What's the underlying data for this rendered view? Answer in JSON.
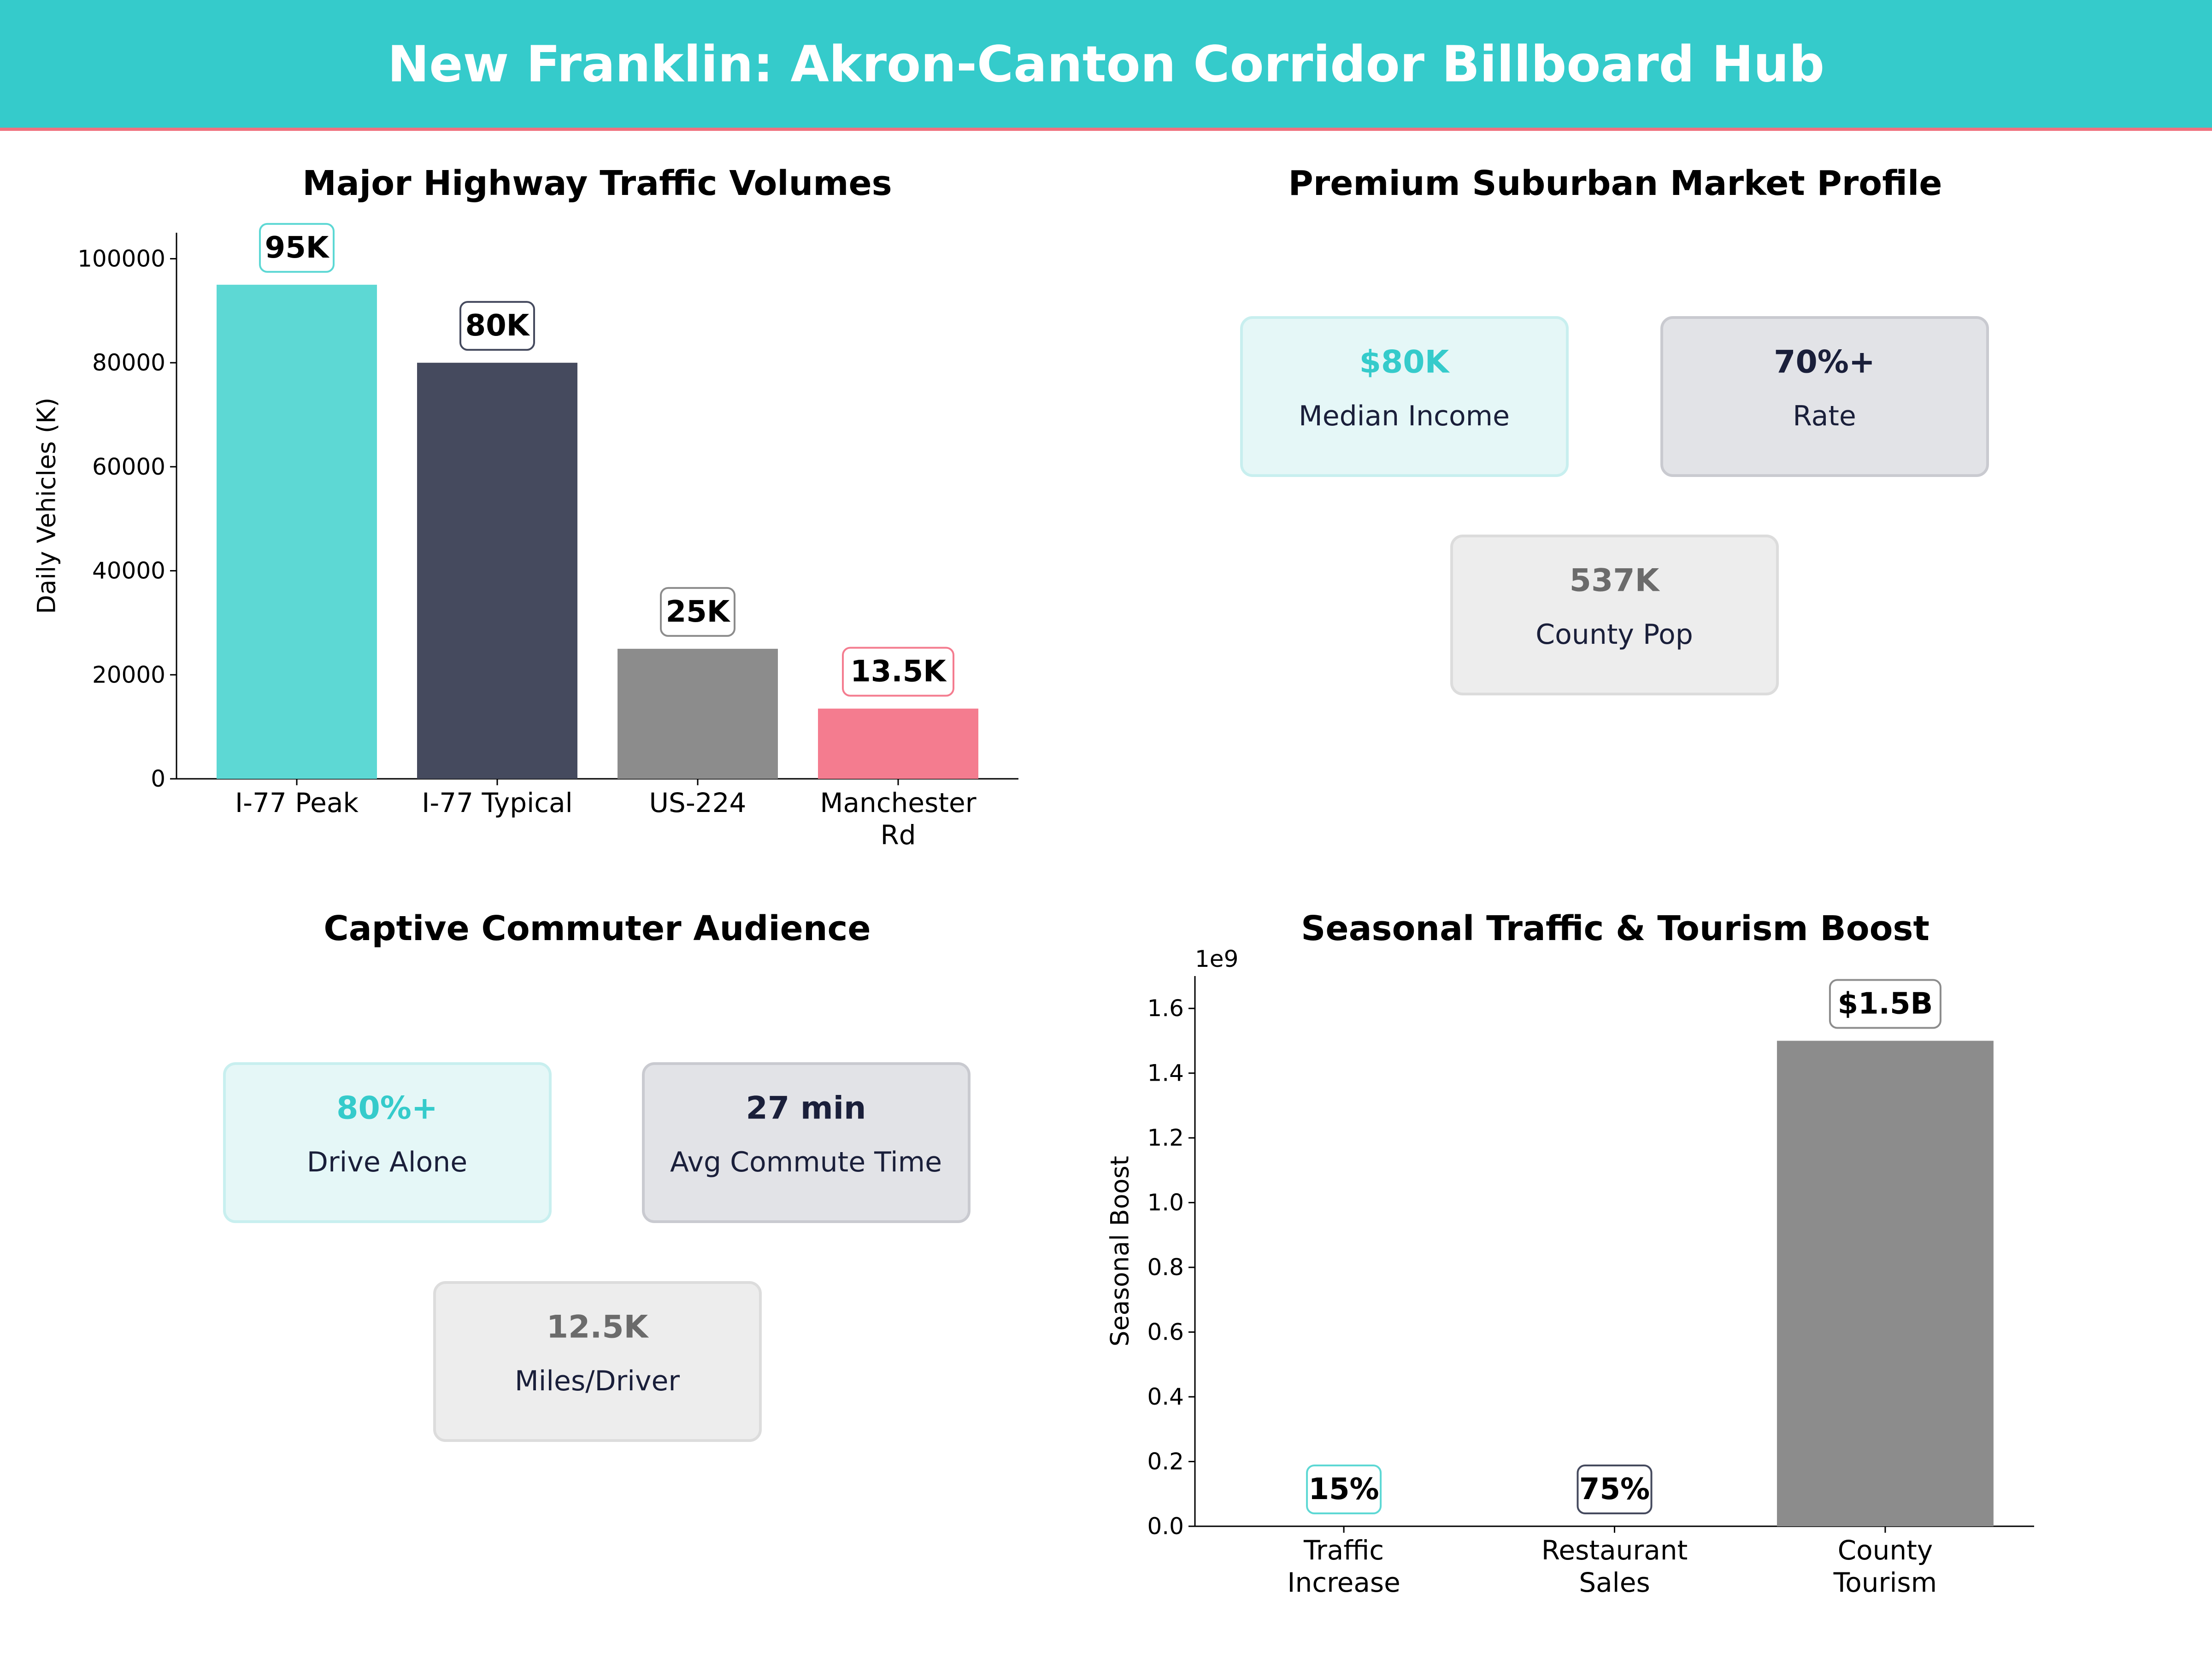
{
  "header": {
    "title": "New Franklin: Akron-Canton Corridor Billboard Hub",
    "bg": "#35CBCB",
    "accent_line": "#F0727F"
  },
  "colors": {
    "teal": "#5DD8D4",
    "navy": "#454A5E",
    "gray": "#8C8C8C",
    "pink": "#F47C8F"
  },
  "chart_data": [
    {
      "type": "bar",
      "title": "Major Highway Traffic Volumes",
      "ylabel": "Daily Vehicles (K)",
      "xlabel": "",
      "categories": [
        "I-77 Peak",
        "I-77 Typical",
        "US-224",
        "Manchester\nRd"
      ],
      "values": [
        95000,
        80000,
        25000,
        13500
      ],
      "data_labels": [
        "95K",
        "80K",
        "25K",
        "13.5K"
      ],
      "bar_colors": [
        "#5DD8D4",
        "#454A5E",
        "#8C8C8C",
        "#F47C8F"
      ],
      "ylim": [
        0,
        105000
      ],
      "yticks": [
        0,
        20000,
        40000,
        60000,
        80000,
        100000
      ],
      "grid": false
    },
    {
      "type": "bar",
      "title": "Seasonal Traffic & Tourism Boost",
      "ylabel": "Seasonal Boost",
      "xlabel": "",
      "offset_label": "1e9",
      "categories": [
        "Traffic\nIncrease",
        "Restaurant\nSales",
        "County\nTourism"
      ],
      "values": [
        15,
        75,
        1500000000
      ],
      "data_labels": [
        "15%",
        "75%",
        "$1.5B"
      ],
      "bar_colors": [
        "#5DD8D4",
        "#454A5E",
        "#8C8C8C"
      ],
      "ylim": [
        0,
        1700000000
      ],
      "yticks": [
        0,
        0.2,
        0.4,
        0.6,
        0.8,
        1.0,
        1.2,
        1.4,
        1.6
      ],
      "ytick_labels": [
        "0.0",
        "0.2",
        "0.4",
        "0.6",
        "0.8",
        "1.0",
        "1.2",
        "1.4",
        "1.6"
      ],
      "grid": false
    }
  ],
  "market_profile": {
    "title": "Premium Suburban Market Profile",
    "cards": [
      {
        "value": "$80K",
        "label": "Median Income",
        "style": "teal"
      },
      {
        "value": "70%+",
        "label": "Rate",
        "style": "navy"
      },
      {
        "value": "537K",
        "label": "County Pop",
        "style": "gray"
      }
    ]
  },
  "commuter": {
    "title": "Captive Commuter Audience",
    "cards": [
      {
        "value": "80%+",
        "label": "Drive Alone",
        "style": "teal"
      },
      {
        "value": "27 min",
        "label": "Avg Commute Time",
        "style": "navy"
      },
      {
        "value": "12.5K",
        "label": "Miles/Driver",
        "style": "gray"
      }
    ]
  }
}
